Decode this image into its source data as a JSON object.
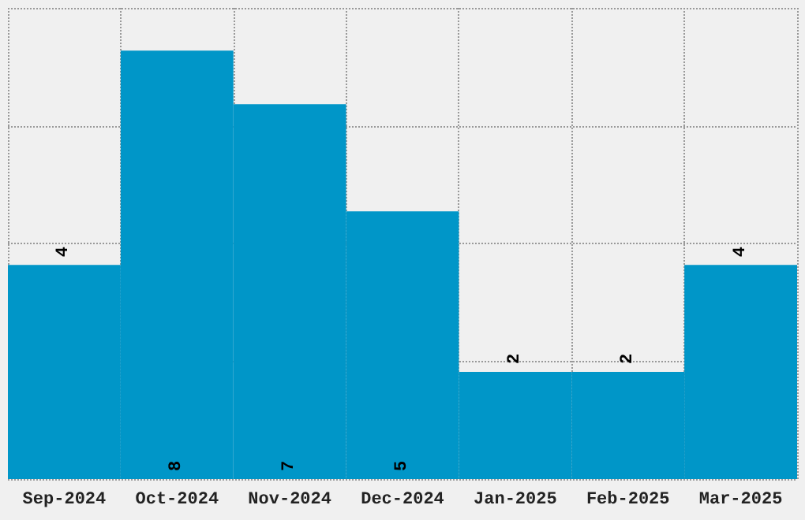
{
  "chart_data": {
    "type": "bar",
    "categories": [
      "Sep-2024",
      "Oct-2024",
      "Nov-2024",
      "Dec-2024",
      "Jan-2025",
      "Feb-2025",
      "Mar-2025"
    ],
    "values": [
      4,
      8,
      7,
      5,
      2,
      2,
      4
    ],
    "color": "#0096c8",
    "data_labels": true,
    "ylim": [
      0,
      8.8
    ],
    "yticks": [
      {
        "value": 0,
        "label": null
      },
      {
        "value": 2.2,
        "label": null
      },
      {
        "value": 4.4,
        "label": null
      },
      {
        "value": 6.6,
        "label": null
      },
      {
        "value": 8.8,
        "label": null
      }
    ],
    "tick_labels": "x",
    "grid": true
  }
}
